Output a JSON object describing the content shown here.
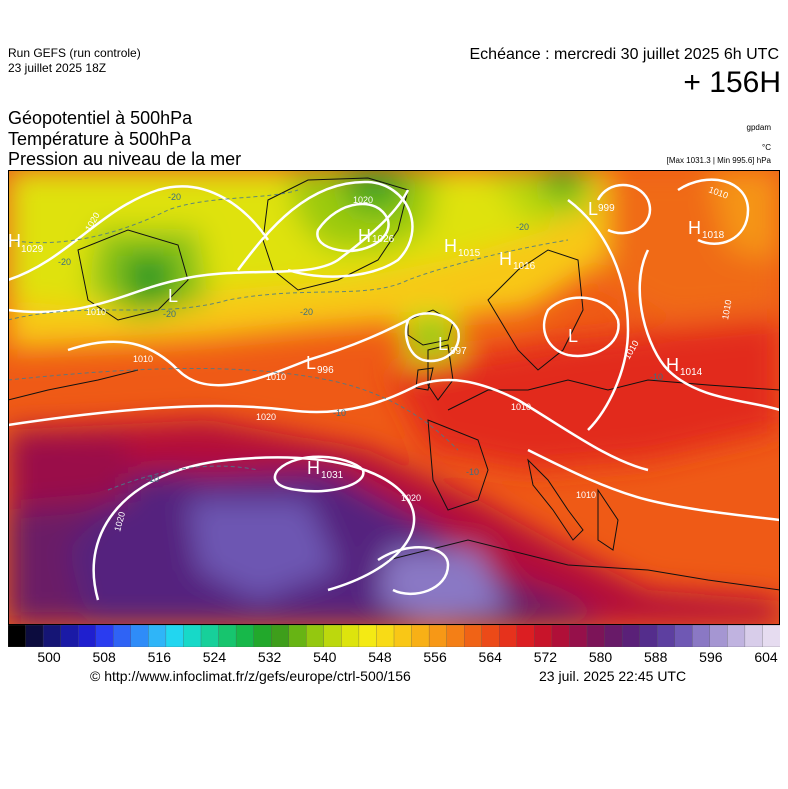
{
  "header": {
    "run_name": "Run GEFS (run controle)",
    "run_date": "23 juillet 2025 18Z",
    "forecast_valid": "Echéance : mercredi 30 juillet 2025 6h UTC",
    "lead_time": "+ 156H"
  },
  "parameters": {
    "line1": "Géopotentiel à 500hPa",
    "line2": "Température à 500hPa",
    "line3": "Pression au niveau de la mer"
  },
  "units": {
    "geopotential": "gpdam",
    "temperature": "°C",
    "pressure_range": "[Max 1031.3 | Min 995.6] hPa"
  },
  "pressure_centers": [
    {
      "type": "H",
      "value": "1029"
    },
    {
      "type": "H",
      "value": "1026"
    },
    {
      "type": "H",
      "value": "1015"
    },
    {
      "type": "H",
      "value": "1016"
    },
    {
      "type": "H",
      "value": "1018"
    },
    {
      "type": "H",
      "value": "1014"
    },
    {
      "type": "H",
      "value": "1031"
    },
    {
      "type": "L",
      "value": "997"
    },
    {
      "type": "L",
      "value": "996"
    },
    {
      "type": "L",
      "value": ""
    },
    {
      "type": "L",
      "value": ""
    },
    {
      "type": "L",
      "value": "999"
    }
  ],
  "isobar_labels": [
    "1020",
    "1020",
    "1010",
    "1010",
    "1010",
    "1010",
    "1020",
    "1020",
    "1020",
    "1010",
    "1010",
    "1010",
    "1010"
  ],
  "temperature_labels": [
    "-20",
    "-20",
    "-20",
    "-20",
    "-20",
    "-10",
    "-10",
    "-10",
    "-10"
  ],
  "colorbar": {
    "ticks": [
      "500",
      "508",
      "516",
      "524",
      "532",
      "540",
      "548",
      "556",
      "564",
      "572",
      "580",
      "588",
      "596",
      "604"
    ],
    "colors": [
      "#000000",
      "#0c0c3e",
      "#151575",
      "#1a1aa6",
      "#1f1fcf",
      "#2a3cf0",
      "#2f63f5",
      "#2f8cf8",
      "#2fb5f8",
      "#22d6f0",
      "#17d9c8",
      "#17d09a",
      "#17c56e",
      "#17b84a",
      "#22a82b",
      "#3e9e1b",
      "#67b414",
      "#94c80f",
      "#bcd80d",
      "#dde40d",
      "#f4ea14",
      "#f8db16",
      "#f9c716",
      "#f8b016",
      "#f79816",
      "#f47f16",
      "#f06316",
      "#ec4a18",
      "#e6321c",
      "#dc1e22",
      "#c8142a",
      "#b00f38",
      "#96104a",
      "#7c1458",
      "#681a68",
      "#5a2078",
      "#542d8c",
      "#5d3fa0",
      "#6f58b4",
      "#8a78c4",
      "#a596d2",
      "#c0b3e0",
      "#d8cdea",
      "#e6dcf0"
    ]
  },
  "footer": {
    "credit_url": "© http://www.infoclimat.fr/z/gefs/europe/ctrl-500/156",
    "issue_time": "23 juil. 2025 22:45 UTC"
  }
}
